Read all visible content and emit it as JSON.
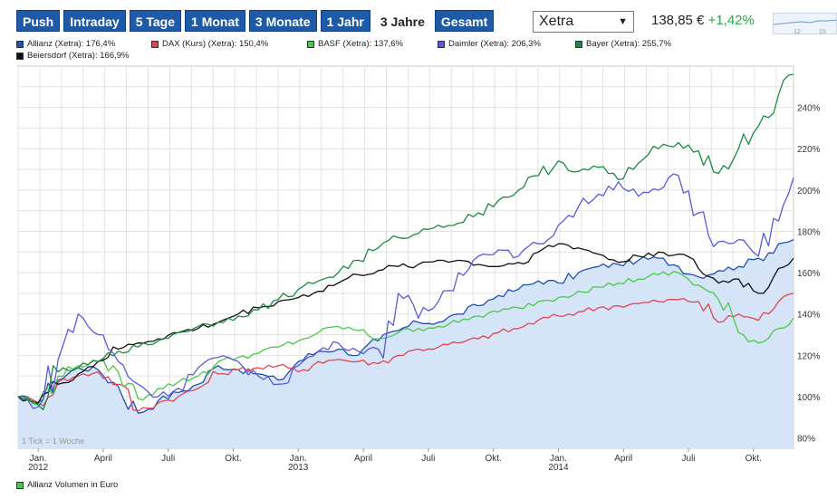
{
  "tabs": [
    "Push",
    "Intraday",
    "5 Tage",
    "1 Monat",
    "3 Monate",
    "1 Jahr",
    "3 Jahre",
    "Gesamt"
  ],
  "active_tab": "3 Jahre",
  "exchange": "Xetra",
  "price": "138,85 €",
  "change": "+1,42%",
  "mini_chart_labels": [
    "12",
    "15"
  ],
  "colors": {
    "tab_bg": "#1e5aa8",
    "positive": "#2aa44a",
    "area_fill": "#d6e4f8"
  },
  "chart_data": {
    "type": "line",
    "y_axis_side": "right",
    "ylim": [
      75,
      260
    ],
    "yticks": [
      80,
      100,
      120,
      140,
      160,
      180,
      200,
      220,
      240
    ],
    "ytick_labels": [
      "80%",
      "100%",
      "120%",
      "140%",
      "160%",
      "180%",
      "200%",
      "220%",
      "240%"
    ],
    "xlim": [
      0,
      155
    ],
    "x_unit": "weeks",
    "xticks": [
      4,
      17,
      30,
      43,
      56,
      69,
      82,
      95,
      108,
      121,
      134,
      147
    ],
    "xtick_labels": [
      "Jan.",
      "April",
      "Juli",
      "Okt.",
      "Jan.",
      "April",
      "Juli",
      "Okt.",
      "Jan.",
      "April",
      "Juli",
      "Okt."
    ],
    "year_labels": [
      {
        "x": 4,
        "label": "2012"
      },
      {
        "x": 56,
        "label": "2013"
      },
      {
        "x": 108,
        "label": "2014"
      }
    ],
    "annotation": "1 Tick = 1 Woche",
    "grid": true,
    "series": [
      {
        "name": "Allianz (Xetra): 176,4%",
        "color": "#2051b0",
        "area": true,
        "keys": [
          [
            0,
            100
          ],
          [
            4,
            97
          ],
          [
            8,
            108
          ],
          [
            12,
            114
          ],
          [
            16,
            113
          ],
          [
            20,
            105
          ],
          [
            24,
            92
          ],
          [
            28,
            98
          ],
          [
            32,
            102
          ],
          [
            36,
            106
          ],
          [
            40,
            115
          ],
          [
            44,
            113
          ],
          [
            48,
            111
          ],
          [
            52,
            108
          ],
          [
            56,
            117
          ],
          [
            60,
            122
          ],
          [
            64,
            123
          ],
          [
            68,
            120
          ],
          [
            72,
            127
          ],
          [
            76,
            132
          ],
          [
            80,
            136
          ],
          [
            84,
            136
          ],
          [
            88,
            140
          ],
          [
            92,
            144
          ],
          [
            96,
            149
          ],
          [
            100,
            152
          ],
          [
            104,
            156
          ],
          [
            108,
            155
          ],
          [
            112,
            160
          ],
          [
            116,
            163
          ],
          [
            120,
            164
          ],
          [
            124,
            166
          ],
          [
            128,
            167
          ],
          [
            132,
            163
          ],
          [
            136,
            158
          ],
          [
            140,
            161
          ],
          [
            144,
            163
          ],
          [
            148,
            167
          ],
          [
            152,
            174
          ],
          [
            155,
            176
          ]
        ]
      },
      {
        "name": "DAX (Kurs) (Xetra): 150,4%",
        "color": "#e0454f",
        "keys": [
          [
            0,
            100
          ],
          [
            4,
            97
          ],
          [
            8,
            107
          ],
          [
            12,
            110
          ],
          [
            16,
            112
          ],
          [
            20,
            106
          ],
          [
            24,
            93
          ],
          [
            28,
            97
          ],
          [
            32,
            100
          ],
          [
            36,
            104
          ],
          [
            40,
            111
          ],
          [
            44,
            113
          ],
          [
            48,
            114
          ],
          [
            52,
            115
          ],
          [
            56,
            112
          ],
          [
            60,
            117
          ],
          [
            64,
            118
          ],
          [
            68,
            117
          ],
          [
            72,
            116
          ],
          [
            76,
            120
          ],
          [
            80,
            123
          ],
          [
            84,
            124
          ],
          [
            88,
            126
          ],
          [
            92,
            128
          ],
          [
            96,
            131
          ],
          [
            100,
            133
          ],
          [
            104,
            137
          ],
          [
            108,
            139
          ],
          [
            112,
            141
          ],
          [
            116,
            143
          ],
          [
            120,
            144
          ],
          [
            124,
            145
          ],
          [
            128,
            146
          ],
          [
            132,
            147
          ],
          [
            136,
            146
          ],
          [
            140,
            136
          ],
          [
            144,
            140
          ],
          [
            148,
            137
          ],
          [
            152,
            146
          ],
          [
            155,
            150
          ]
        ]
      },
      {
        "name": "BASF (Xetra): 137,6%",
        "color": "#4ac84a",
        "keys": [
          [
            0,
            100
          ],
          [
            4,
            96
          ],
          [
            8,
            110
          ],
          [
            12,
            115
          ],
          [
            16,
            117
          ],
          [
            20,
            112
          ],
          [
            24,
            99
          ],
          [
            28,
            104
          ],
          [
            32,
            107
          ],
          [
            36,
            110
          ],
          [
            40,
            117
          ],
          [
            44,
            119
          ],
          [
            48,
            121
          ],
          [
            52,
            124
          ],
          [
            56,
            127
          ],
          [
            60,
            131
          ],
          [
            64,
            134
          ],
          [
            68,
            132
          ],
          [
            72,
            128
          ],
          [
            76,
            131
          ],
          [
            80,
            133
          ],
          [
            84,
            134
          ],
          [
            88,
            136
          ],
          [
            92,
            139
          ],
          [
            96,
            141
          ],
          [
            100,
            143
          ],
          [
            104,
            146
          ],
          [
            108,
            148
          ],
          [
            112,
            151
          ],
          [
            116,
            153
          ],
          [
            120,
            155
          ],
          [
            124,
            157
          ],
          [
            128,
            159
          ],
          [
            132,
            160
          ],
          [
            136,
            154
          ],
          [
            140,
            147
          ],
          [
            144,
            131
          ],
          [
            148,
            126
          ],
          [
            152,
            133
          ],
          [
            155,
            138
          ]
        ]
      },
      {
        "name": "Daimler (Xetra): 206,3%",
        "color": "#5a5adc",
        "keys": [
          [
            0,
            100
          ],
          [
            4,
            95
          ],
          [
            8,
            118
          ],
          [
            12,
            140
          ],
          [
            16,
            130
          ],
          [
            20,
            117
          ],
          [
            24,
            106
          ],
          [
            28,
            100
          ],
          [
            32,
            104
          ],
          [
            36,
            114
          ],
          [
            40,
            119
          ],
          [
            44,
            117
          ],
          [
            48,
            110
          ],
          [
            52,
            106
          ],
          [
            56,
            115
          ],
          [
            60,
            122
          ],
          [
            64,
            126
          ],
          [
            68,
            122
          ],
          [
            72,
            123
          ],
          [
            76,
            150
          ],
          [
            80,
            138
          ],
          [
            84,
            146
          ],
          [
            88,
            160
          ],
          [
            92,
            168
          ],
          [
            96,
            171
          ],
          [
            100,
            168
          ],
          [
            104,
            174
          ],
          [
            108,
            183
          ],
          [
            112,
            192
          ],
          [
            116,
            198
          ],
          [
            120,
            204
          ],
          [
            124,
            197
          ],
          [
            128,
            200
          ],
          [
            132,
            207
          ],
          [
            136,
            189
          ],
          [
            140,
            175
          ],
          [
            144,
            176
          ],
          [
            148,
            168
          ],
          [
            152,
            185
          ],
          [
            155,
            206
          ]
        ]
      },
      {
        "name": "Bayer (Xetra): 255,7%",
        "color": "#1c8a44",
        "keys": [
          [
            0,
            100
          ],
          [
            4,
            96
          ],
          [
            8,
            112
          ],
          [
            12,
            114
          ],
          [
            16,
            117
          ],
          [
            20,
            122
          ],
          [
            24,
            124
          ],
          [
            28,
            127
          ],
          [
            32,
            131
          ],
          [
            36,
            134
          ],
          [
            40,
            136
          ],
          [
            44,
            139
          ],
          [
            48,
            142
          ],
          [
            52,
            147
          ],
          [
            56,
            152
          ],
          [
            60,
            156
          ],
          [
            64,
            160
          ],
          [
            68,
            166
          ],
          [
            72,
            172
          ],
          [
            76,
            177
          ],
          [
            80,
            179
          ],
          [
            84,
            183
          ],
          [
            88,
            184
          ],
          [
            92,
            189
          ],
          [
            96,
            195
          ],
          [
            100,
            200
          ],
          [
            104,
            207
          ],
          [
            108,
            214
          ],
          [
            112,
            209
          ],
          [
            116,
            211
          ],
          [
            120,
            205
          ],
          [
            124,
            213
          ],
          [
            128,
            220
          ],
          [
            132,
            223
          ],
          [
            136,
            219
          ],
          [
            140,
            208
          ],
          [
            144,
            220
          ],
          [
            148,
            231
          ],
          [
            152,
            246
          ],
          [
            155,
            256
          ]
        ]
      },
      {
        "name": "Beiersdorf (Xetra): 166,9%",
        "color": "#111111",
        "keys": [
          [
            0,
            100
          ],
          [
            4,
            97
          ],
          [
            8,
            106
          ],
          [
            12,
            111
          ],
          [
            16,
            117
          ],
          [
            20,
            123
          ],
          [
            24,
            126
          ],
          [
            28,
            128
          ],
          [
            32,
            131
          ],
          [
            36,
            133
          ],
          [
            40,
            136
          ],
          [
            44,
            140
          ],
          [
            48,
            143
          ],
          [
            52,
            146
          ],
          [
            56,
            148
          ],
          [
            60,
            151
          ],
          [
            64,
            155
          ],
          [
            68,
            159
          ],
          [
            72,
            161
          ],
          [
            76,
            163
          ],
          [
            80,
            164
          ],
          [
            84,
            166
          ],
          [
            88,
            166
          ],
          [
            92,
            164
          ],
          [
            96,
            163
          ],
          [
            100,
            165
          ],
          [
            104,
            170
          ],
          [
            108,
            174
          ],
          [
            112,
            172
          ],
          [
            116,
            169
          ],
          [
            120,
            165
          ],
          [
            124,
            168
          ],
          [
            128,
            170
          ],
          [
            132,
            169
          ],
          [
            136,
            162
          ],
          [
            140,
            155
          ],
          [
            144,
            157
          ],
          [
            148,
            150
          ],
          [
            152,
            162
          ],
          [
            155,
            167
          ]
        ]
      }
    ]
  },
  "footer_label": "Allianz Volumen in Euro"
}
